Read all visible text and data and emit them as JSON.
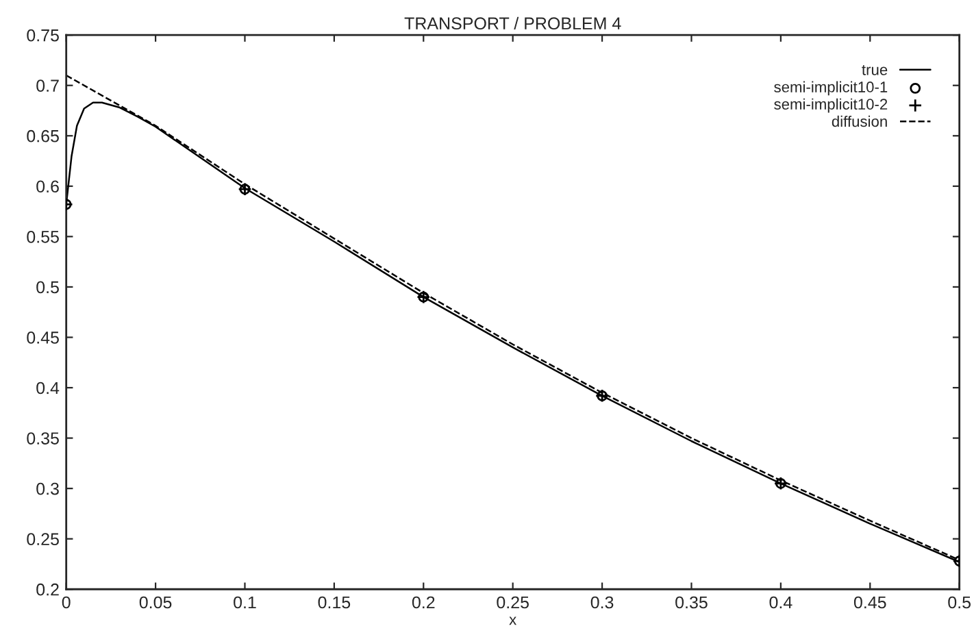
{
  "chart_data": {
    "type": "line",
    "title": "TRANSPORT / PROBLEM 4",
    "xlabel": "x",
    "xlim": [
      0,
      0.5
    ],
    "ylim": [
      0.2,
      0.75
    ],
    "xticks": [
      0,
      0.05,
      0.1,
      0.15,
      0.2,
      0.25,
      0.3,
      0.35,
      0.4,
      0.45,
      0.5
    ],
    "yticks": [
      0.2,
      0.25,
      0.3,
      0.35,
      0.4,
      0.45,
      0.5,
      0.55,
      0.6,
      0.65,
      0.7,
      0.75
    ],
    "grid": false,
    "legend": "top right",
    "series": [
      {
        "name": "true",
        "line_style": "solid",
        "marker": "none",
        "color": "#000000",
        "x": [
          0,
          0.003,
          0.006,
          0.01,
          0.015,
          0.02,
          0.03,
          0.04,
          0.05,
          0.1,
          0.15,
          0.2,
          0.25,
          0.3,
          0.35,
          0.4,
          0.45,
          0.5
        ],
        "values": [
          0.582,
          0.63,
          0.66,
          0.677,
          0.683,
          0.683,
          0.678,
          0.669,
          0.659,
          0.598,
          0.545,
          0.49,
          0.44,
          0.392,
          0.347,
          0.305,
          0.265,
          0.227
        ]
      },
      {
        "name": "semi-implicit10-1",
        "type": "scatter",
        "marker": "circle",
        "color": "#000000",
        "x": [
          0,
          0.1,
          0.2,
          0.3,
          0.4,
          0.5
        ],
        "values": [
          0.582,
          0.597,
          0.49,
          0.392,
          0.305,
          0.228
        ]
      },
      {
        "name": "semi-implicit10-2",
        "type": "scatter",
        "marker": "cross",
        "color": "#000000",
        "x": [
          0,
          0.1,
          0.2,
          0.3,
          0.4,
          0.5
        ],
        "values": [
          0.582,
          0.597,
          0.49,
          0.392,
          0.305,
          0.228
        ]
      },
      {
        "name": "diffusion",
        "line_style": "dashed",
        "marker": "none",
        "color": "#000000",
        "x": [
          0,
          0.05,
          0.1,
          0.15,
          0.2,
          0.25,
          0.3,
          0.35,
          0.4,
          0.45,
          0.5
        ],
        "values": [
          0.71,
          0.66,
          0.602,
          0.548,
          0.494,
          0.443,
          0.395,
          0.35,
          0.308,
          0.268,
          0.229
        ]
      }
    ]
  }
}
